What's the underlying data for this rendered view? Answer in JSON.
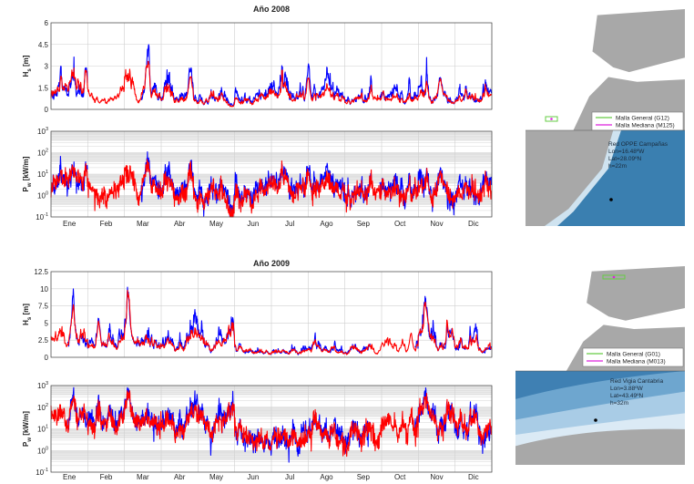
{
  "chart_data": [
    {
      "type": "line",
      "title": "Año 2008",
      "categories": [
        "Ene",
        "Feb",
        "Mar",
        "Abr",
        "May",
        "Jun",
        "Jul",
        "Ago",
        "Sep",
        "Oct",
        "Nov",
        "Dic"
      ],
      "xlim_months": [
        0,
        12
      ],
      "grid": true,
      "panels": [
        {
          "id": "hs",
          "ylabel_main": "H",
          "ylabel_sub": "s",
          "ylabel_unit": " [m]",
          "scale": "linear",
          "ylim": [
            0,
            6
          ],
          "yticks": [
            0,
            1.5,
            3,
            4.5,
            6
          ],
          "ytick_labels": [
            "0",
            "1.5",
            "3",
            "4.5",
            "6"
          ]
        },
        {
          "id": "pw",
          "ylabel_main": "P",
          "ylabel_sub": "w",
          "ylabel_unit": " [kW/m]",
          "scale": "log",
          "ylim": [
            0.1,
            1000
          ],
          "yticks": [
            0.1,
            1,
            10,
            100,
            1000
          ],
          "ytick_labels": [
            [
              "10",
              "-1"
            ],
            [
              "10",
              "0"
            ],
            [
              "10",
              "1"
            ],
            [
              "10",
              "2"
            ],
            [
              "10",
              "3"
            ]
          ]
        }
      ],
      "series": [
        {
          "name": "blue",
          "color": "#0000ff",
          "hs_monthly_level_approx": [
            0.8,
            0.7,
            1.0,
            0.95,
            0.9,
            0.95,
            1.55,
            1.55,
            1.0,
            1.15,
            1.25,
            1.05
          ],
          "gaps_months": [
            [
              1.0,
              2.45
            ],
            [
              8.75,
              8.95
            ]
          ]
        },
        {
          "name": "red",
          "color": "#ff0000",
          "hs_monthly_level_approx": [
            0.85,
            0.65,
            1.0,
            0.8,
            0.75,
            0.85,
            1.15,
            1.2,
            0.85,
            0.95,
            1.05,
            0.9
          ],
          "gaps_months": []
        }
      ],
      "notable_peaks_hs": [
        {
          "month": 0.95,
          "hs": 2.1
        },
        {
          "month": 2.6,
          "hs": 2.4
        },
        {
          "month": 3.8,
          "hs": 2.3
        },
        {
          "month": 7.0,
          "hs": 2.6
        },
        {
          "month": 10.6,
          "hs": 2.5
        }
      ],
      "pw_scale": 2.5
    },
    {
      "type": "line",
      "title": "Año 2009",
      "categories": [
        "Ene",
        "Feb",
        "Mar",
        "Abr",
        "May",
        "Jun",
        "Jul",
        "Ago",
        "Sep",
        "Oct",
        "Nov",
        "Dic"
      ],
      "xlim_months": [
        0,
        12
      ],
      "grid": true,
      "panels": [
        {
          "id": "hs",
          "ylabel_main": "H",
          "ylabel_sub": "s",
          "ylabel_unit": " [m]",
          "scale": "linear",
          "ylim": [
            0,
            12.5
          ],
          "yticks": [
            0,
            2.5,
            5,
            7.5,
            10,
            12.5
          ],
          "ytick_labels": [
            "0",
            "2.5",
            "5",
            "7.5",
            "10",
            "12.5"
          ]
        },
        {
          "id": "pw",
          "ylabel_main": "P",
          "ylabel_sub": "w",
          "ylabel_unit": " [kW/m]",
          "scale": "log",
          "ylim": [
            0.1,
            1000
          ],
          "yticks": [
            0.1,
            1,
            10,
            100,
            1000
          ],
          "ytick_labels": [
            [
              "10",
              "-1"
            ],
            [
              "10",
              "0"
            ],
            [
              "10",
              "1"
            ],
            [
              "10",
              "2"
            ],
            [
              "10",
              "3"
            ]
          ]
        }
      ],
      "series": [
        {
          "name": "blue",
          "color": "#0000ff",
          "hs_monthly_level_approx": [
            3.2,
            1.6,
            1.8,
            1.6,
            2.0,
            0.9,
            1.2,
            1.1,
            1.3,
            1.5,
            3.0,
            1.8
          ],
          "gaps_months": [
            [
              0.0,
              0.45
            ],
            [
              8.7,
              9.9
            ]
          ]
        },
        {
          "name": "red",
          "color": "#ff0000",
          "hs_monthly_level_approx": [
            3.0,
            1.5,
            1.7,
            1.4,
            1.9,
            0.85,
            1.1,
            1.0,
            1.2,
            1.4,
            2.8,
            1.7
          ],
          "gaps_months": []
        }
      ],
      "notable_peaks_hs": [
        {
          "month": 0.6,
          "hs": 7.7
        },
        {
          "month": 1.3,
          "hs": 5.2
        },
        {
          "month": 2.1,
          "hs": 7.2
        },
        {
          "month": 9.8,
          "hs": 4.5
        },
        {
          "month": 10.2,
          "hs": 7.5
        },
        {
          "month": 10.9,
          "hs": 4.5
        }
      ],
      "pw_scale": 5
    }
  ],
  "maps": [
    {
      "legend": [
        {
          "label": "Malla General (G12)",
          "color": "#66cc44"
        },
        {
          "label": "Malla Mediana (M125)",
          "color": "#dd22dd"
        }
      ],
      "station": [
        "Red OPPE Campañas",
        "Lon=16.48ºW",
        "Lat=28.09ºN",
        "h=22m"
      ]
    },
    {
      "legend": [
        {
          "label": "Malla General (G01)",
          "color": "#66cc44"
        },
        {
          "label": "Malla Mediana (M013)",
          "color": "#dd22dd"
        }
      ],
      "station": [
        "Red Vigia Cantabria",
        "Lon=3.88ºW",
        "Lat=43.49ºN",
        "h=32m"
      ]
    }
  ]
}
